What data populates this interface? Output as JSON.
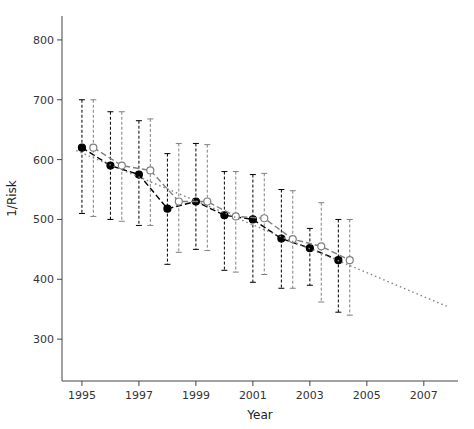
{
  "chart_data": {
    "type": "line",
    "xlabel": "Year",
    "ylabel": "1/Risk",
    "xlim": [
      1994.3,
      2008.2
    ],
    "ylim": [
      230,
      840
    ],
    "xticks": [
      1995,
      1997,
      1999,
      2001,
      2003,
      2005,
      2007
    ],
    "yticks": [
      300,
      400,
      500,
      600,
      700,
      800
    ],
    "grid": false,
    "series": [
      {
        "color": "black",
        "marker": "circle",
        "line_style": "dashed",
        "x": [
          1995,
          1996,
          1997,
          1998,
          1999,
          2000,
          2001,
          2002,
          2003,
          2004
        ],
        "values": [
          620,
          590,
          575,
          518,
          530,
          507,
          500,
          468,
          452,
          432
        ],
        "upper": [
          700,
          680,
          665,
          610,
          627,
          580,
          575,
          550,
          485,
          500
        ],
        "lower": [
          510,
          500,
          490,
          425,
          450,
          415,
          395,
          385,
          390,
          345
        ]
      },
      {
        "color": "gray",
        "marker": "open-circle",
        "line_style": "dashed",
        "x": [
          1995.4,
          1996.4,
          1997.4,
          1998.4,
          1999.4,
          2000.4,
          2001.4,
          2002.4,
          2003.4,
          2004.4
        ],
        "values": [
          620,
          590,
          582,
          530,
          530,
          505,
          502,
          467,
          455,
          432
        ],
        "upper": [
          700,
          680,
          668,
          627,
          625,
          580,
          577,
          548,
          528,
          500
        ],
        "lower": [
          505,
          497,
          490,
          445,
          448,
          412,
          408,
          385,
          362,
          340
        ]
      },
      {
        "color": "gray",
        "line_style": "dotted",
        "x": [
          1994.8,
          2007.8
        ],
        "values": [
          615,
          355
        ]
      }
    ]
  }
}
